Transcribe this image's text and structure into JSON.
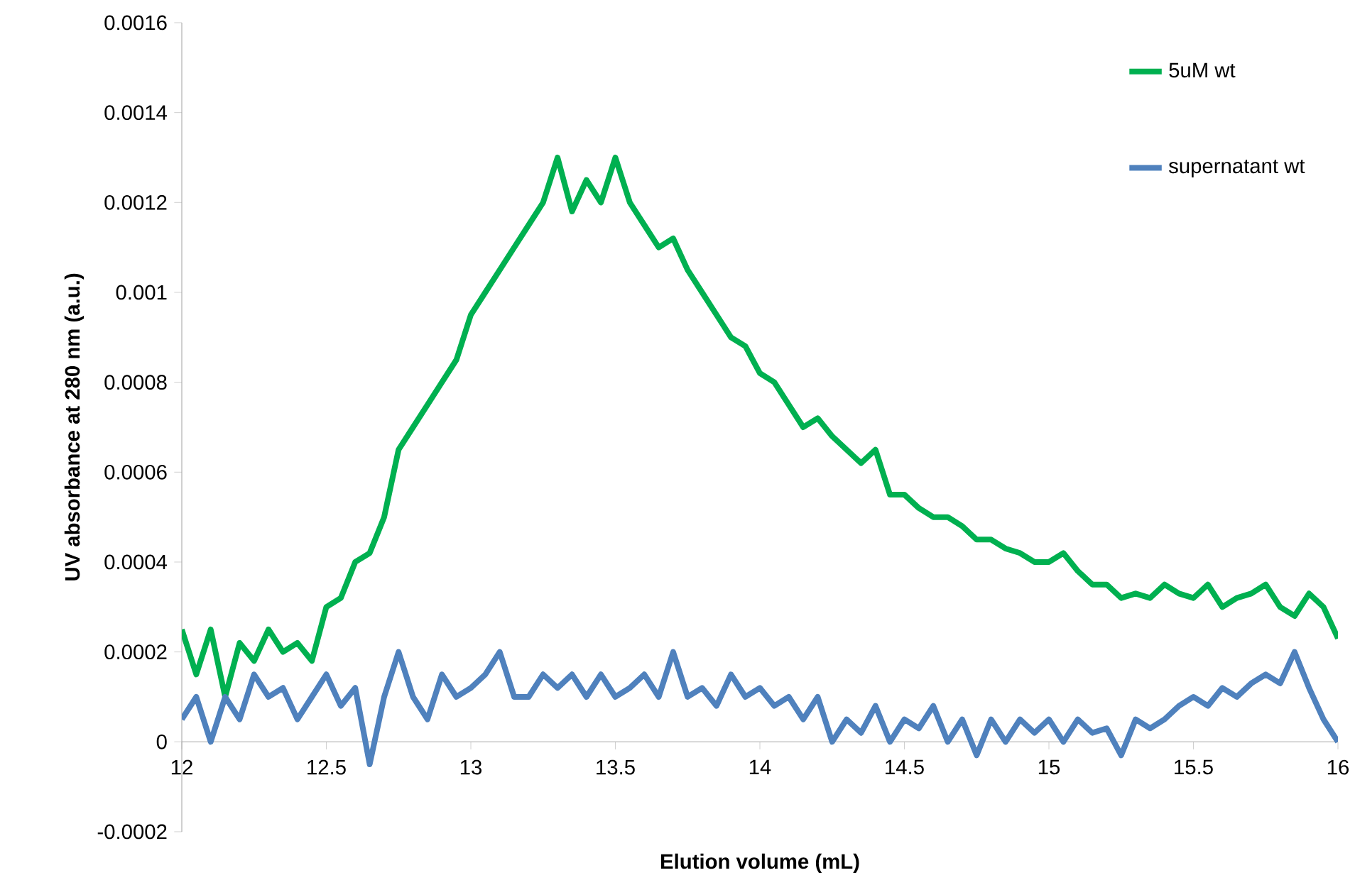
{
  "chart_data": {
    "type": "line",
    "xlabel": "Elution volume (mL)",
    "ylabel": "UV absorbance at 280 nm (a.u.)",
    "x": [
      12,
      12.05,
      12.1,
      12.15,
      12.2,
      12.25,
      12.3,
      12.35,
      12.4,
      12.45,
      12.5,
      12.55,
      12.6,
      12.65,
      12.7,
      12.75,
      12.8,
      12.85,
      12.9,
      12.95,
      13,
      13.05,
      13.1,
      13.15,
      13.2,
      13.25,
      13.3,
      13.35,
      13.4,
      13.45,
      13.5,
      13.55,
      13.6,
      13.65,
      13.7,
      13.75,
      13.8,
      13.85,
      13.9,
      13.95,
      14,
      14.05,
      14.1,
      14.15,
      14.2,
      14.25,
      14.3,
      14.35,
      14.4,
      14.45,
      14.5,
      14.55,
      14.6,
      14.65,
      14.7,
      14.75,
      14.8,
      14.85,
      14.9,
      14.95,
      15,
      15.05,
      15.1,
      15.15,
      15.2,
      15.25,
      15.3,
      15.35,
      15.4,
      15.45,
      15.5,
      15.55,
      15.6,
      15.65,
      15.7,
      15.75,
      15.8,
      15.85,
      15.9,
      15.95,
      16
    ],
    "series": [
      {
        "name": "5uM wt",
        "color": "#00b050",
        "values": [
          0.00025,
          0.00015,
          0.00025,
          0.0001,
          0.00022,
          0.00018,
          0.00025,
          0.0002,
          0.00022,
          0.00018,
          0.0003,
          0.00032,
          0.0004,
          0.00042,
          0.0005,
          0.00065,
          0.0007,
          0.00075,
          0.0008,
          0.00085,
          0.00095,
          0.001,
          0.00105,
          0.0011,
          0.00115,
          0.0012,
          0.0013,
          0.00118,
          0.00125,
          0.0012,
          0.0013,
          0.0012,
          0.00115,
          0.0011,
          0.00112,
          0.00105,
          0.001,
          0.00095,
          0.0009,
          0.00088,
          0.00082,
          0.0008,
          0.00075,
          0.0007,
          0.00072,
          0.00068,
          0.00065,
          0.00062,
          0.00065,
          0.00055,
          0.00055,
          0.00052,
          0.0005,
          0.0005,
          0.00048,
          0.00045,
          0.00045,
          0.00043,
          0.00042,
          0.0004,
          0.0004,
          0.00042,
          0.00038,
          0.00035,
          0.00035,
          0.00032,
          0.00033,
          0.00032,
          0.00035,
          0.00033,
          0.00032,
          0.00035,
          0.0003,
          0.00032,
          0.00033,
          0.00035,
          0.0003,
          0.00028,
          0.00033,
          0.0003,
          0.00023
        ]
      },
      {
        "name": "supernatant wt",
        "color": "#4f81bd",
        "values": [
          5e-05,
          0.0001,
          0.0,
          0.0001,
          5e-05,
          0.00015,
          0.0001,
          0.00012,
          5e-05,
          0.0001,
          0.00015,
          8e-05,
          0.00012,
          -5e-05,
          0.0001,
          0.0002,
          0.0001,
          5e-05,
          0.00015,
          0.0001,
          0.00012,
          0.00015,
          0.0002,
          0.0001,
          0.0001,
          0.00015,
          0.00012,
          0.00015,
          0.0001,
          0.00015,
          0.0001,
          0.00012,
          0.00015,
          0.0001,
          0.0002,
          0.0001,
          0.00012,
          8e-05,
          0.00015,
          0.0001,
          0.00012,
          8e-05,
          0.0001,
          5e-05,
          0.0001,
          0.0,
          5e-05,
          2e-05,
          8e-05,
          0.0,
          5e-05,
          3e-05,
          8e-05,
          0.0,
          5e-05,
          -3e-05,
          5e-05,
          0.0,
          5e-05,
          2e-05,
          5e-05,
          0.0,
          5e-05,
          2e-05,
          3e-05,
          -3e-05,
          5e-05,
          3e-05,
          5e-05,
          8e-05,
          0.0001,
          8e-05,
          0.00012,
          0.0001,
          0.00013,
          0.00015,
          0.00013,
          0.0002,
          0.00012,
          5e-05,
          0.0
        ]
      }
    ],
    "xlim": [
      12,
      16
    ],
    "ylim": [
      -0.0002,
      0.0016
    ],
    "xticks": [
      12,
      12.5,
      13,
      13.5,
      14,
      14.5,
      15,
      15.5,
      16
    ],
    "yticks": [
      -0.0002,
      0,
      0.0002,
      0.0004,
      0.0006,
      0.0008,
      0.001,
      0.0012,
      0.0014,
      0.0016
    ],
    "legend": "top right",
    "grid": false,
    "marker": "none",
    "line_style": "solid"
  }
}
